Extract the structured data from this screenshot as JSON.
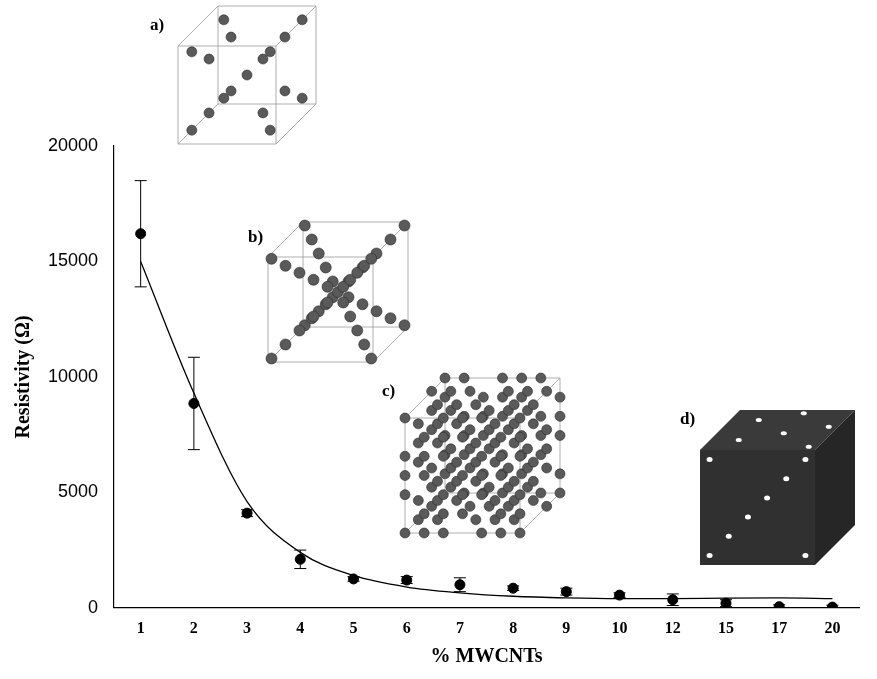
{
  "chart_data": {
    "type": "scatter",
    "x_label": "% MWCNTs",
    "y_label": "Resistivity (Ω)",
    "categories": [
      "1",
      "2",
      "3",
      "4",
      "5",
      "6",
      "7",
      "8",
      "9",
      "10",
      "12",
      "15",
      "17",
      "20"
    ],
    "ylim": [
      0,
      20000
    ],
    "yticks": [
      0,
      5000,
      10000,
      15000,
      20000
    ],
    "grid": false,
    "annotations": [
      "a)",
      "b)",
      "c)",
      "d)"
    ],
    "series": [
      {
        "type": "scatter",
        "marker": "circle",
        "color": "#000000",
        "values": [
          16200,
          8850,
          4100,
          2100,
          1250,
          1200,
          1000,
          850,
          700,
          550,
          350,
          200,
          50,
          30
        ],
        "error": [
          2300,
          2000,
          150,
          400,
          100,
          150,
          300,
          100,
          150,
          100,
          250,
          150,
          80,
          80
        ]
      },
      {
        "type": "line",
        "line_style": "solid",
        "color": "#000000",
        "values": [
          15000,
          9300,
          4600,
          2400,
          1400,
          900,
          650,
          500,
          430,
          400,
          400,
          420,
          430,
          400
        ]
      }
    ]
  }
}
